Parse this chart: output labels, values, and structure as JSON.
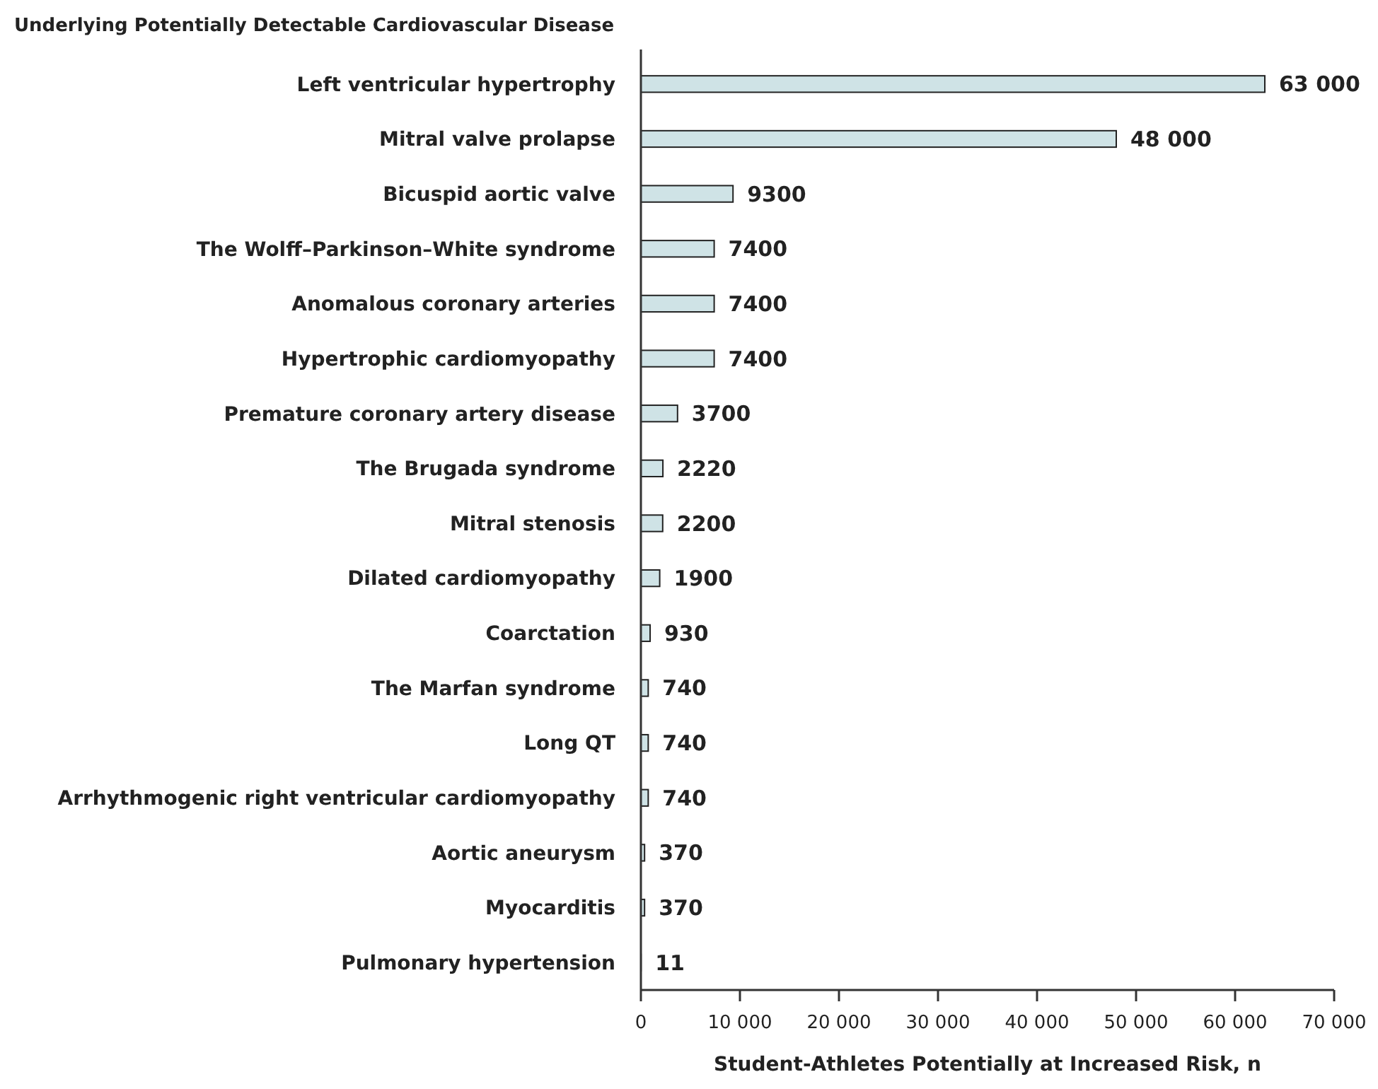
{
  "chart_data": {
    "type": "bar",
    "orientation": "horizontal",
    "title": "Underlying Potentially Detectable Cardiovascular Disease",
    "xlabel": "Student-Athletes Potentially at Increased Risk, n",
    "categories": [
      "Left ventricular hypertrophy",
      "Mitral valve prolapse",
      "Bicuspid aortic valve",
      "The Wolff–Parkinson–White syndrome",
      "Anomalous coronary arteries",
      "Hypertrophic cardiomyopathy",
      "Premature coronary artery disease",
      "The Brugada syndrome",
      "Mitral stenosis",
      "Dilated cardiomyopathy",
      "Coarctation",
      "The Marfan syndrome",
      "Long QT",
      "Arrhythmogenic right ventricular cardiomyopathy",
      "Aortic aneurysm",
      "Myocarditis",
      "Pulmonary hypertension"
    ],
    "values": [
      63000,
      48000,
      9300,
      7400,
      7400,
      7400,
      3700,
      2220,
      2200,
      1900,
      930,
      740,
      740,
      740,
      370,
      370,
      11
    ],
    "value_labels": [
      "63 000",
      "48 000",
      "9300",
      "7400",
      "7400",
      "7400",
      "3700",
      "2220",
      "2200",
      "1900",
      "930",
      "740",
      "740",
      "740",
      "370",
      "370",
      "11"
    ],
    "color": "#cfe3e6",
    "xlim": [
      0,
      70000
    ],
    "xticks": [
      0,
      {
        "value": 10000,
        "label": "10 000"
      },
      {
        "value": 20000,
        "label": "20 000"
      },
      {
        "value": 30000,
        "label": "30 000"
      },
      {
        "value": 40000,
        "label": "40 000"
      },
      {
        "value": 50000,
        "label": "50 000"
      },
      {
        "value": 60000,
        "label": "60 000"
      },
      {
        "value": 70000,
        "label": "70 000"
      }
    ]
  }
}
